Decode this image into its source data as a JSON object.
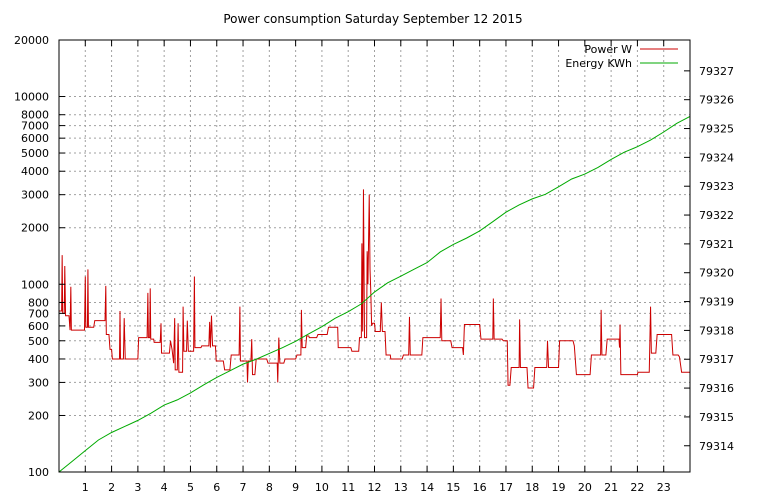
{
  "chart_data": {
    "type": "line",
    "title": "Power consumption Saturday September 12 2015",
    "xlim": [
      0,
      24
    ],
    "x_ticks": [
      1,
      2,
      3,
      4,
      5,
      6,
      7,
      8,
      9,
      10,
      11,
      12,
      13,
      14,
      15,
      16,
      17,
      18,
      19,
      20,
      21,
      22,
      23
    ],
    "y_left": {
      "scale": "log",
      "lim": [
        100,
        20000
      ],
      "ticks": [
        {
          "value": 100,
          "label": "100"
        },
        {
          "value": 200,
          "label": "200"
        },
        {
          "value": 300,
          "label": "300"
        },
        {
          "value": 400,
          "label": "400"
        },
        {
          "value": 500,
          "label": "500"
        },
        {
          "value": 600,
          "label": "600"
        },
        {
          "value": 700,
          "label": "700"
        },
        {
          "value": 800,
          "label": "800"
        },
        {
          "value": 1000,
          "label": "1000"
        },
        {
          "value": 2000,
          "label": "2000"
        },
        {
          "value": 3000,
          "label": "3000"
        },
        {
          "value": 4000,
          "label": "4000"
        },
        {
          "value": 5000,
          "label": "5000"
        },
        {
          "value": 6000,
          "label": "6000"
        },
        {
          "value": 7000,
          "label": "7000"
        },
        {
          "value": 8000,
          "label": "8000"
        },
        {
          "value": 10000,
          "label": "10000"
        },
        {
          "value": 20000,
          "label": "20000"
        }
      ]
    },
    "y_right": {
      "scale": "linear",
      "lim": [
        79313.09,
        79328.07
      ],
      "ticks": [
        79314,
        79315,
        79316,
        79317,
        79318,
        79319,
        79320,
        79321,
        79322,
        79323,
        79324,
        79325,
        79326,
        79327
      ]
    },
    "grid": true,
    "legend": "top-right",
    "series": [
      {
        "name": "Power W",
        "axis": "left",
        "color": "#cc0000",
        "points": [
          [
            0,
            720
          ],
          [
            0.1,
            720
          ],
          [
            0.12,
            1430
          ],
          [
            0.14,
            700
          ],
          [
            0.2,
            700
          ],
          [
            0.22,
            1250
          ],
          [
            0.25,
            680
          ],
          [
            0.38,
            680
          ],
          [
            0.42,
            570
          ],
          [
            0.45,
            970
          ],
          [
            0.47,
            570
          ],
          [
            0.97,
            570
          ],
          [
            1.0,
            1100
          ],
          [
            1.02,
            590
          ],
          [
            1.08,
            590
          ],
          [
            1.1,
            1200
          ],
          [
            1.12,
            590
          ],
          [
            1.32,
            590
          ],
          [
            1.36,
            640
          ],
          [
            1.75,
            640
          ],
          [
            1.78,
            980
          ],
          [
            1.8,
            540
          ],
          [
            1.9,
            540
          ],
          [
            1.94,
            450
          ],
          [
            2.0,
            450
          ],
          [
            2.03,
            400
          ],
          [
            2.3,
            400
          ],
          [
            2.32,
            720
          ],
          [
            2.34,
            400
          ],
          [
            2.45,
            400
          ],
          [
            2.48,
            660
          ],
          [
            2.52,
            400
          ],
          [
            3.0,
            400
          ],
          [
            3.03,
            520
          ],
          [
            3.35,
            520
          ],
          [
            3.38,
            900
          ],
          [
            3.4,
            520
          ],
          [
            3.45,
            520
          ],
          [
            3.47,
            950
          ],
          [
            3.49,
            510
          ],
          [
            3.6,
            510
          ],
          [
            3.62,
            490
          ],
          [
            3.85,
            490
          ],
          [
            3.88,
            620
          ],
          [
            3.9,
            430
          ],
          [
            4.2,
            430
          ],
          [
            4.24,
            500
          ],
          [
            4.3,
            450
          ],
          [
            4.36,
            380
          ],
          [
            4.4,
            660
          ],
          [
            4.42,
            350
          ],
          [
            4.5,
            350
          ],
          [
            4.53,
            620
          ],
          [
            4.56,
            340
          ],
          [
            4.7,
            340
          ],
          [
            4.72,
            760
          ],
          [
            4.75,
            440
          ],
          [
            4.85,
            440
          ],
          [
            4.88,
            640
          ],
          [
            4.92,
            440
          ],
          [
            5.12,
            440
          ],
          [
            5.15,
            1100
          ],
          [
            5.17,
            460
          ],
          [
            5.4,
            460
          ],
          [
            5.43,
            470
          ],
          [
            5.7,
            470
          ],
          [
            5.73,
            630
          ],
          [
            5.76,
            460
          ],
          [
            5.8,
            680
          ],
          [
            5.84,
            470
          ],
          [
            5.95,
            470
          ],
          [
            5.98,
            390
          ],
          [
            6.25,
            390
          ],
          [
            6.3,
            350
          ],
          [
            6.5,
            350
          ],
          [
            6.55,
            420
          ],
          [
            6.85,
            420
          ],
          [
            6.88,
            760
          ],
          [
            6.9,
            390
          ],
          [
            7.15,
            390
          ],
          [
            7.17,
            300
          ],
          [
            7.2,
            390
          ],
          [
            7.3,
            390
          ],
          [
            7.33,
            510
          ],
          [
            7.36,
            330
          ],
          [
            7.45,
            330
          ],
          [
            7.5,
            400
          ],
          [
            7.9,
            400
          ],
          [
            7.95,
            380
          ],
          [
            8.3,
            380
          ],
          [
            8.32,
            300
          ],
          [
            8.36,
            520
          ],
          [
            8.4,
            380
          ],
          [
            8.55,
            380
          ],
          [
            8.6,
            400
          ],
          [
            9.0,
            400
          ],
          [
            9.05,
            420
          ],
          [
            9.2,
            420
          ],
          [
            9.22,
            730
          ],
          [
            9.25,
            460
          ],
          [
            9.38,
            460
          ],
          [
            9.42,
            530
          ],
          [
            9.5,
            530
          ],
          [
            9.52,
            520
          ],
          [
            9.8,
            520
          ],
          [
            9.85,
            540
          ],
          [
            10.2,
            540
          ],
          [
            10.25,
            590
          ],
          [
            10.6,
            590
          ],
          [
            10.62,
            460
          ],
          [
            11.1,
            460
          ],
          [
            11.14,
            440
          ],
          [
            11.4,
            440
          ],
          [
            11.43,
            520
          ],
          [
            11.5,
            520
          ],
          [
            11.52,
            1650
          ],
          [
            11.55,
            560
          ],
          [
            11.58,
            3200
          ],
          [
            11.62,
            520
          ],
          [
            11.7,
            520
          ],
          [
            11.72,
            1500
          ],
          [
            11.75,
            1000
          ],
          [
            11.8,
            3000
          ],
          [
            11.83,
            1200
          ],
          [
            11.86,
            900
          ],
          [
            11.89,
            600
          ],
          [
            11.93,
            620
          ],
          [
            12.0,
            620
          ],
          [
            12.03,
            560
          ],
          [
            12.22,
            560
          ],
          [
            12.26,
            800
          ],
          [
            12.3,
            560
          ],
          [
            12.4,
            560
          ],
          [
            12.44,
            420
          ],
          [
            12.6,
            420
          ],
          [
            12.62,
            400
          ],
          [
            13.05,
            400
          ],
          [
            13.1,
            420
          ],
          [
            13.3,
            420
          ],
          [
            13.33,
            670
          ],
          [
            13.36,
            420
          ],
          [
            13.5,
            420
          ],
          [
            13.52,
            420
          ],
          [
            13.8,
            420
          ],
          [
            13.84,
            520
          ],
          [
            14.3,
            520
          ],
          [
            14.34,
            520
          ],
          [
            14.5,
            520
          ],
          [
            14.53,
            840
          ],
          [
            14.56,
            500
          ],
          [
            14.9,
            500
          ],
          [
            14.95,
            460
          ],
          [
            15.35,
            460
          ],
          [
            15.38,
            420
          ],
          [
            15.42,
            610
          ],
          [
            16.0,
            610
          ],
          [
            16.05,
            510
          ],
          [
            16.5,
            510
          ],
          [
            16.52,
            840
          ],
          [
            16.55,
            510
          ],
          [
            16.85,
            510
          ],
          [
            16.9,
            500
          ],
          [
            17.05,
            500
          ],
          [
            17.08,
            290
          ],
          [
            17.15,
            290
          ],
          [
            17.2,
            360
          ],
          [
            17.5,
            360
          ],
          [
            17.52,
            650
          ],
          [
            17.55,
            360
          ],
          [
            17.8,
            360
          ],
          [
            17.84,
            280
          ],
          [
            18.05,
            280
          ],
          [
            18.1,
            360
          ],
          [
            18.55,
            360
          ],
          [
            18.58,
            500
          ],
          [
            18.62,
            360
          ],
          [
            19.0,
            360
          ],
          [
            19.04,
            500
          ],
          [
            19.55,
            500
          ],
          [
            19.6,
            470
          ],
          [
            19.68,
            330
          ],
          [
            20.2,
            330
          ],
          [
            20.25,
            420
          ],
          [
            20.6,
            420
          ],
          [
            20.62,
            730
          ],
          [
            20.65,
            420
          ],
          [
            20.8,
            420
          ],
          [
            20.85,
            510
          ],
          [
            21.3,
            510
          ],
          [
            21.32,
            460
          ],
          [
            21.34,
            610
          ],
          [
            21.37,
            330
          ],
          [
            22.0,
            330
          ],
          [
            22.02,
            340
          ],
          [
            22.45,
            340
          ],
          [
            22.5,
            760
          ],
          [
            22.53,
            430
          ],
          [
            22.7,
            430
          ],
          [
            22.75,
            540
          ],
          [
            23.3,
            540
          ],
          [
            23.35,
            420
          ],
          [
            23.55,
            420
          ],
          [
            23.6,
            410
          ],
          [
            23.68,
            340
          ],
          [
            24.0,
            340
          ]
        ]
      },
      {
        "name": "Energy KWh",
        "axis": "right",
        "color": "#00aa00",
        "points": [
          [
            0,
            79313.09
          ],
          [
            0.5,
            79313.46
          ],
          [
            1.0,
            79313.83
          ],
          [
            1.5,
            79314.2
          ],
          [
            2.0,
            79314.46
          ],
          [
            2.5,
            79314.67
          ],
          [
            3.0,
            79314.88
          ],
          [
            3.5,
            79315.13
          ],
          [
            4.0,
            79315.41
          ],
          [
            4.5,
            79315.59
          ],
          [
            5.0,
            79315.83
          ],
          [
            5.5,
            79316.11
          ],
          [
            6.0,
            79316.37
          ],
          [
            6.5,
            79316.6
          ],
          [
            7.0,
            79316.83
          ],
          [
            7.5,
            79317.0
          ],
          [
            8.0,
            79317.2
          ],
          [
            8.5,
            79317.4
          ],
          [
            9.0,
            79317.62
          ],
          [
            9.5,
            79317.88
          ],
          [
            10.0,
            79318.13
          ],
          [
            10.5,
            79318.42
          ],
          [
            11.0,
            79318.65
          ],
          [
            11.5,
            79318.92
          ],
          [
            12.0,
            79319.33
          ],
          [
            12.5,
            79319.65
          ],
          [
            13.0,
            79319.88
          ],
          [
            13.5,
            79320.12
          ],
          [
            14.0,
            79320.35
          ],
          [
            14.5,
            79320.72
          ],
          [
            15.0,
            79320.98
          ],
          [
            15.5,
            79321.2
          ],
          [
            16.0,
            79321.45
          ],
          [
            16.5,
            79321.77
          ],
          [
            17.0,
            79322.1
          ],
          [
            17.5,
            79322.35
          ],
          [
            18.0,
            79322.56
          ],
          [
            18.5,
            79322.72
          ],
          [
            19.0,
            79322.98
          ],
          [
            19.5,
            79323.25
          ],
          [
            20.0,
            79323.42
          ],
          [
            20.5,
            79323.65
          ],
          [
            21.0,
            79323.93
          ],
          [
            21.5,
            79324.18
          ],
          [
            22.0,
            79324.37
          ],
          [
            22.5,
            79324.6
          ],
          [
            23.0,
            79324.88
          ],
          [
            23.5,
            79325.18
          ],
          [
            24.0,
            79325.42
          ]
        ]
      }
    ]
  }
}
